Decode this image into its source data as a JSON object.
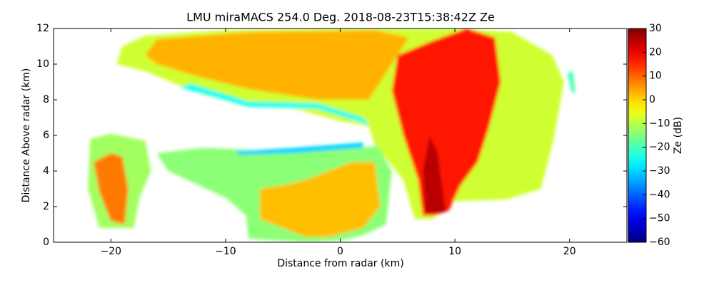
{
  "chart_data": {
    "type": "rhi",
    "title": "LMU miraMACS 254.0 Deg. 2018-08-23T15:38:42Z  Ze",
    "xlabel": "Distance from radar (km)",
    "ylabel": "Distance Above radar  (km)",
    "colorbar_label": "Ze (dB)",
    "colormap": "jet",
    "xlim": [
      -25,
      25
    ],
    "xticks": [
      {
        "value": -20,
        "label": "−20"
      },
      {
        "value": -10,
        "label": "−10"
      },
      0,
      10,
      20
    ],
    "ylim": [
      0,
      12
    ],
    "yticks": [
      0,
      2,
      4,
      6,
      8,
      10,
      12
    ],
    "zlim": [
      -60,
      30
    ],
    "zticks": [
      {
        "value": -60,
        "label": "−60"
      },
      {
        "value": -50,
        "label": "−50"
      },
      {
        "value": -40,
        "label": "−40"
      },
      {
        "value": -30,
        "label": "−30"
      },
      {
        "value": -20,
        "label": "−20"
      },
      {
        "value": -10,
        "label": "−10"
      },
      0,
      10,
      20,
      30
    ],
    "regions": [
      {
        "points": [
          [
            -19.5,
            10
          ],
          [
            -19,
            11
          ],
          [
            -17,
            11.6
          ],
          [
            -10,
            11.9
          ],
          [
            0,
            12
          ],
          [
            10,
            12
          ],
          [
            15,
            11.8
          ],
          [
            18.5,
            10.5
          ],
          [
            19.5,
            9
          ],
          [
            18.7,
            6
          ],
          [
            17.5,
            3
          ],
          [
            14.5,
            2.4
          ],
          [
            10,
            2.3
          ],
          [
            8,
            1.3
          ],
          [
            6.5,
            1.3
          ],
          [
            5.5,
            3.5
          ],
          [
            3,
            5.5
          ],
          [
            2.5,
            6.5
          ],
          [
            0,
            6.8
          ],
          [
            -4,
            7.5
          ],
          [
            -8,
            7.6
          ],
          [
            -12,
            8.3
          ],
          [
            -14,
            8.8
          ],
          [
            -17,
            9.6
          ]
        ],
        "value": -8
      },
      {
        "points": [
          [
            -14,
            8.7
          ],
          [
            -8,
            7.6
          ],
          [
            -2,
            7.5
          ],
          [
            2,
            6.7
          ],
          [
            2.6,
            6.5
          ],
          [
            2,
            7.0
          ],
          [
            -2,
            7.8
          ],
          [
            -8,
            7.9
          ],
          [
            -13,
            8.9
          ]
        ],
        "value": -25
      },
      {
        "points": [
          [
            -17,
            10.5
          ],
          [
            -16,
            11.4
          ],
          [
            -8,
            11.8
          ],
          [
            3,
            11.9
          ],
          [
            6,
            11.5
          ],
          [
            4,
            9.5
          ],
          [
            2.5,
            8
          ],
          [
            -2,
            8
          ],
          [
            -8,
            8.6
          ],
          [
            -13,
            9.4
          ],
          [
            -16,
            10
          ]
        ],
        "value": 3
      },
      {
        "points": [
          [
            5,
            10.5
          ],
          [
            8,
            11.3
          ],
          [
            11,
            12
          ],
          [
            13.5,
            11.5
          ],
          [
            14,
            9
          ],
          [
            13,
            6.5
          ],
          [
            12,
            4.5
          ],
          [
            10.5,
            3.2
          ],
          [
            9.5,
            1.8
          ],
          [
            8.2,
            1.5
          ],
          [
            7.2,
            1.5
          ],
          [
            6.8,
            3.5
          ],
          [
            5.5,
            6
          ],
          [
            4.5,
            8.5
          ]
        ],
        "value": 17
      },
      {
        "points": [
          [
            7.5,
            1.6
          ],
          [
            9.2,
            1.7
          ],
          [
            8.8,
            3.5
          ],
          [
            8.5,
            5
          ],
          [
            7.8,
            6
          ],
          [
            7.2,
            4
          ]
        ],
        "value": 25
      },
      {
        "points": [
          [
            -21.8,
            5.8
          ],
          [
            -20,
            6.1
          ],
          [
            -17,
            5.7
          ],
          [
            -16.5,
            4
          ],
          [
            -17.5,
            2.5
          ],
          [
            -18,
            0.8
          ],
          [
            -21,
            0.8
          ],
          [
            -22,
            3
          ]
        ],
        "value": -12
      },
      {
        "points": [
          [
            -21.5,
            4.5
          ],
          [
            -20,
            5
          ],
          [
            -19,
            4.8
          ],
          [
            -18.5,
            3
          ],
          [
            -18.8,
            1
          ],
          [
            -20,
            1.2
          ],
          [
            -21,
            2.8
          ]
        ],
        "value": 8
      },
      {
        "points": [
          [
            -16,
            5
          ],
          [
            -12,
            5.3
          ],
          [
            -8,
            5.2
          ],
          [
            -4,
            5.0
          ],
          [
            -2,
            5.4
          ],
          [
            1,
            5.3
          ],
          [
            3.3,
            5.4
          ],
          [
            4.5,
            4
          ],
          [
            4,
            1
          ],
          [
            2,
            0.4
          ],
          [
            0,
            0.1
          ],
          [
            -3,
            0
          ],
          [
            -8,
            0.2
          ],
          [
            -8.2,
            1.5
          ],
          [
            -10,
            2.5
          ],
          [
            -12,
            3.1
          ],
          [
            -15,
            4
          ]
        ],
        "value": -14
      },
      {
        "points": [
          [
            -9,
            5.1
          ],
          [
            -4,
            5.3
          ],
          [
            2,
            5.6
          ],
          [
            2,
            5.3
          ],
          [
            -4,
            5.0
          ],
          [
            -9,
            4.9
          ]
        ],
        "value": -30
      },
      {
        "points": [
          [
            -7,
            3
          ],
          [
            -5,
            3.2
          ],
          [
            -3,
            3.5
          ],
          [
            -1,
            4
          ],
          [
            1,
            4.5
          ],
          [
            3,
            4.5
          ],
          [
            3.5,
            2
          ],
          [
            2,
            0.8
          ],
          [
            -1,
            0.3
          ],
          [
            -3,
            0.3
          ],
          [
            -5,
            0.8
          ],
          [
            -7,
            1.3
          ]
        ],
        "value": 2
      },
      {
        "points": [
          [
            19.8,
            9.5
          ],
          [
            20.3,
            9.6
          ],
          [
            20.5,
            8.4
          ],
          [
            20.2,
            8.4
          ]
        ],
        "value": -20
      }
    ]
  }
}
